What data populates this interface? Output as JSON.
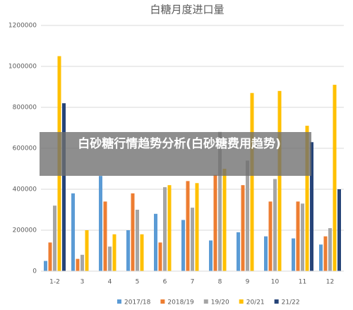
{
  "chart_data": {
    "type": "bar",
    "title": "白糖月度进口量",
    "categories": [
      "1-2",
      "3",
      "4",
      "5",
      "6",
      "7",
      "8",
      "9",
      "10",
      "11",
      "12"
    ],
    "series": [
      {
        "name": "2017/18",
        "color": "#5b9bd5",
        "values": [
          50000,
          380000,
          465000,
          200000,
          280000,
          250000,
          150000,
          190000,
          170000,
          160000,
          130000
        ]
      },
      {
        "name": "2018/19",
        "color": "#ed7d31",
        "values": [
          140000,
          60000,
          340000,
          380000,
          140000,
          440000,
          470000,
          420000,
          340000,
          340000,
          170000
        ]
      },
      {
        "name": "19/20",
        "color": "#a5a5a5",
        "values": [
          320000,
          80000,
          120000,
          300000,
          410000,
          310000,
          680000,
          540000,
          450000,
          330000,
          210000
        ]
      },
      {
        "name": "20/21",
        "color": "#ffc000",
        "values": [
          1050000,
          200000,
          180000,
          180000,
          420000,
          430000,
          500000,
          870000,
          880000,
          710000,
          910000
        ]
      },
      {
        "name": "21/22",
        "color": "#264478",
        "values": [
          820000,
          null,
          null,
          null,
          null,
          null,
          null,
          null,
          null,
          630000,
          400000
        ]
      }
    ],
    "ylim": [
      0,
      1200000
    ],
    "yticks": [
      0,
      200000,
      400000,
      600000,
      800000,
      1000000,
      1200000
    ],
    "grid": true
  },
  "banner": "白砂糖行情趋势分析(白砂糖费用趋势)"
}
